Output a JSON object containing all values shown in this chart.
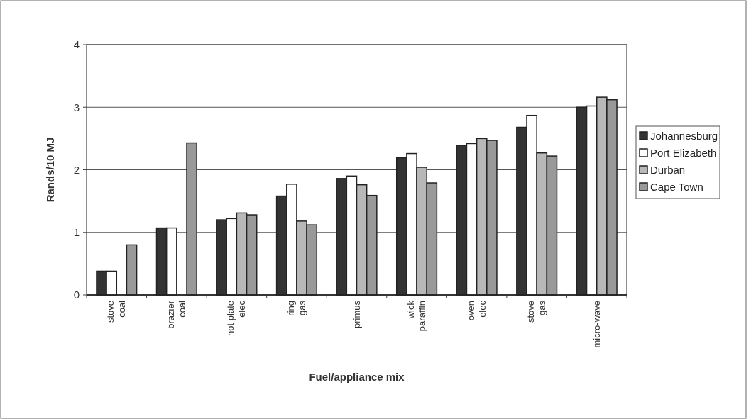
{
  "chart_data": {
    "type": "bar",
    "xlabel": "Fuel/appliance mix",
    "ylabel": "Rands/10 MJ",
    "categories": [
      "stove\ncoal",
      "brazier\ncoal",
      "hot plate\nelec",
      "ring\ngas",
      "primus",
      "wick\nparaffin",
      "oven\nelec",
      "stove\ngas",
      "micro-wave"
    ],
    "series": [
      {
        "name": "Johannesburg",
        "color": "#333333",
        "values": [
          0.38,
          1.07,
          1.2,
          1.58,
          1.86,
          2.19,
          2.39,
          2.68,
          3.0
        ]
      },
      {
        "name": "Port Elizabeth",
        "color": "#ffffff",
        "values": [
          0.38,
          1.07,
          1.22,
          1.77,
          1.9,
          2.26,
          2.42,
          2.87,
          3.02
        ]
      },
      {
        "name": "Durban",
        "color": "#b8b8b8",
        "values": [
          null,
          null,
          1.31,
          1.18,
          1.76,
          2.04,
          2.5,
          2.27,
          3.16
        ]
      },
      {
        "name": "Cape Town",
        "color": "#999999",
        "values": [
          0.8,
          2.43,
          1.28,
          1.12,
          1.59,
          1.79,
          2.47,
          2.22,
          3.12
        ]
      }
    ],
    "ylim": [
      0,
      4
    ],
    "yticks": [
      0,
      1,
      2,
      3,
      4
    ],
    "grid": "y",
    "legend": "right"
  }
}
